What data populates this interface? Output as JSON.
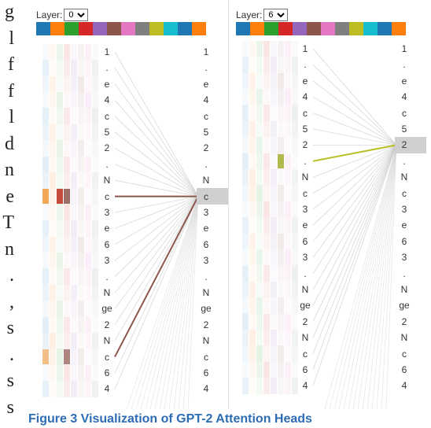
{
  "side_text": [
    "g",
    "l",
    "f",
    "f",
    "l",
    "d",
    "n",
    "e",
    "T",
    "n",
    ".",
    ",",
    "s",
    ".",
    "s",
    "s"
  ],
  "caption": "Figure 3 Visualization of GPT-2 Attention Heads",
  "head_colors": [
    "#1f77b4",
    "#ff7f0e",
    "#2ca02c",
    "#d62728",
    "#9467bd",
    "#8c564b",
    "#e377c2",
    "#7f7f7f",
    "#bcbd22",
    "#17becf",
    "#1f77b4",
    "#ff7f0e"
  ],
  "panels": [
    {
      "layer_label": "Layer:",
      "layer_value": "0",
      "tokens": [
        "1",
        ".",
        "e",
        "4",
        "c",
        "5",
        "2",
        ".",
        "N",
        "c",
        "3",
        "e",
        "6",
        "3",
        ".",
        "N",
        "ge",
        "2",
        "N",
        "c",
        "6",
        "4"
      ],
      "focus_index": 9,
      "strong_heads": [
        {
          "head": 5,
          "from": 9,
          "color": "#8c564b"
        },
        {
          "head": 5,
          "from": 19,
          "color": "#8c564b"
        }
      ],
      "cells": [
        {
          "row": 9,
          "col": 0,
          "color": "#f29a3b",
          "opacity": 0.85
        },
        {
          "row": 9,
          "col": 2,
          "color": "#c0392b",
          "opacity": 0.9
        },
        {
          "row": 9,
          "col": 3,
          "color": "#8c564b",
          "opacity": 0.85
        },
        {
          "row": 19,
          "col": 0,
          "color": "#f29a3b",
          "opacity": 0.6
        },
        {
          "row": 19,
          "col": 3,
          "color": "#8c564b",
          "opacity": 0.7
        }
      ]
    },
    {
      "layer_label": "Layer:",
      "layer_value": "6",
      "tokens": [
        "1",
        ".",
        "e",
        "4",
        "c",
        "5",
        "2",
        ".",
        "N",
        "c",
        "3",
        "e",
        "6",
        "3",
        ".",
        "N",
        "ge",
        "2",
        "N",
        "c",
        "6",
        "4"
      ],
      "focus_index": 6,
      "strong_heads": [
        {
          "head": 8,
          "from": 7,
          "color": "#bcbd22"
        }
      ],
      "cells": [
        {
          "row": 7,
          "col": 5,
          "color": "#a8b13a",
          "opacity": 0.9
        }
      ]
    }
  ]
}
